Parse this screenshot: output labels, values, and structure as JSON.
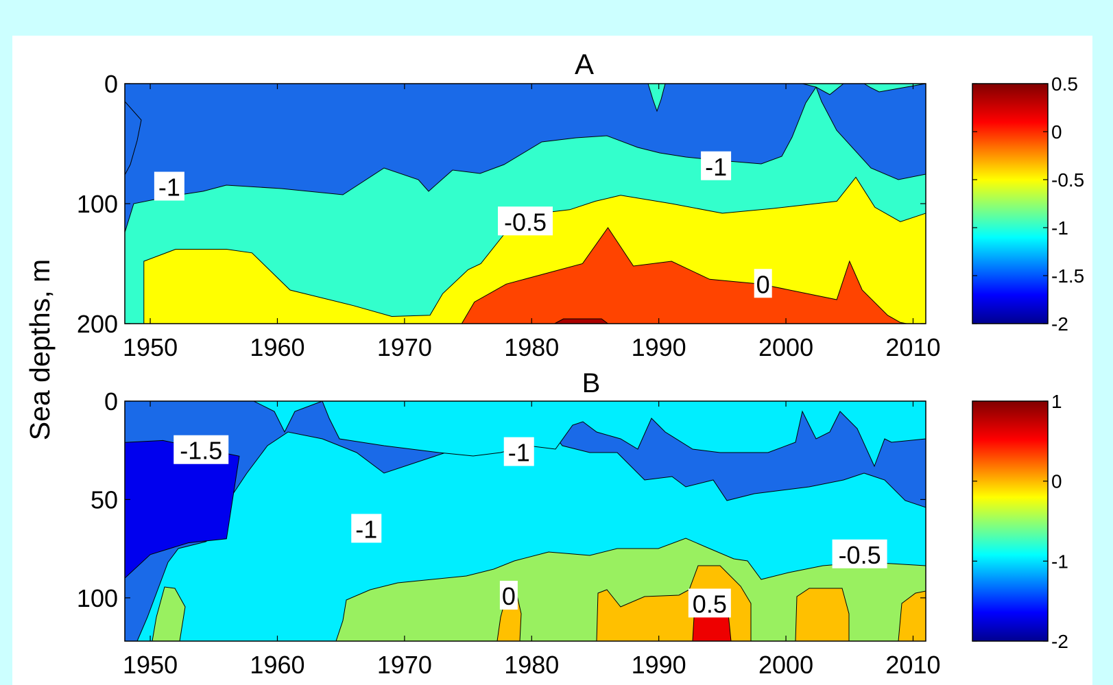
{
  "figure": {
    "ylabel": "Sea depths, m",
    "background_color": "#ccffff",
    "panel_color": "#ffffff"
  },
  "chart_data": [
    {
      "type": "heatmap",
      "panel_title": "A",
      "x_ticks": [
        "1950",
        "1960",
        "1970",
        "1980",
        "1990",
        "2000",
        "2010"
      ],
      "y_ticks": [
        "0",
        "100",
        "200"
      ],
      "xlim": [
        1948,
        2011
      ],
      "ylim": [
        0,
        200
      ],
      "y_reversed": true,
      "colorbar": {
        "min": -2,
        "max": 0.5,
        "ticks": [
          "0.5",
          "0",
          "-0.5",
          "-1",
          "-1.5",
          "-2"
        ]
      },
      "contour_labels": [
        {
          "text": "-1",
          "x": 1951.5,
          "y": 86
        },
        {
          "text": "-1",
          "x": 1994.5,
          "y": 69
        },
        {
          "text": "-0.5",
          "x": 1979.5,
          "y": 115
        },
        {
          "text": "0",
          "x": 1998.2,
          "y": 167
        }
      ],
      "bands": [
        {
          "value": -0.25,
          "color": "#ffff00",
          "points": [
            [
              1948,
              200
            ],
            [
              1949.5,
              200
            ],
            [
              1949.5,
              148
            ],
            [
              1952,
              138
            ],
            [
              1956,
              138
            ],
            [
              1958,
              141
            ],
            [
              1961,
              172
            ],
            [
              1966,
              185
            ],
            [
              1969,
              194
            ],
            [
              1972,
              193
            ],
            [
              1973,
              175
            ],
            [
              1975,
              155
            ],
            [
              1976,
              150
            ],
            [
              1977.5,
              130
            ],
            [
              1979,
              110
            ],
            [
              1983,
              105
            ],
            [
              1985,
              98
            ],
            [
              1987,
              93
            ],
            [
              1991,
              100
            ],
            [
              1995,
              108
            ],
            [
              1999,
              104
            ],
            [
              2004,
              98
            ],
            [
              2005.5,
              78
            ],
            [
              2007,
              103
            ],
            [
              2009,
              115
            ],
            [
              2011,
              108
            ],
            [
              2011,
              200
            ]
          ]
        },
        {
          "value": 0.25,
          "color": "#ff4400",
          "points": [
            [
              1974.5,
              200
            ],
            [
              1975.5,
              182
            ],
            [
              1978,
              167
            ],
            [
              1984,
              150
            ],
            [
              1986,
              120
            ],
            [
              1988,
              152
            ],
            [
              1991,
              148
            ],
            [
              1994,
              163
            ],
            [
              1998,
              167
            ],
            [
              2004,
              180
            ],
            [
              2005,
              148
            ],
            [
              2006,
              172
            ],
            [
              2008,
              193
            ],
            [
              2009,
              199
            ],
            [
              2009.5,
              200
            ]
          ]
        },
        {
          "value": 0.5,
          "color": "#aa0000",
          "points": [
            [
              1981.8,
              200
            ],
            [
              1982.5,
              196
            ],
            [
              1985.5,
              196
            ],
            [
              1986,
              200
            ]
          ]
        }
      ]
    },
    {
      "type": "heatmap",
      "panel_title": "B",
      "x_ticks": [
        "1950",
        "1960",
        "1970",
        "1980",
        "1990",
        "2000",
        "2010"
      ],
      "y_ticks": [
        "0",
        "50",
        "100"
      ],
      "xlim": [
        1948,
        2011
      ],
      "ylim": [
        0,
        122
      ],
      "y_reversed": true,
      "colorbar": {
        "min": -2,
        "max": 1,
        "ticks": [
          "1",
          "0",
          "-1",
          "-2"
        ]
      },
      "contour_labels": [
        {
          "text": "-1.5",
          "x": 1954,
          "y": 25
        },
        {
          "text": "-1",
          "x": 1979,
          "y": 26
        },
        {
          "text": "-1",
          "x": 1967,
          "y": 65
        },
        {
          "text": "-0.5",
          "x": 2005.8,
          "y": 78
        },
        {
          "text": "0",
          "x": 1978.2,
          "y": 99
        },
        {
          "text": "0.5",
          "x": 1994,
          "y": 103
        }
      ],
      "bands": [
        {
          "value": -1.75,
          "color": "#0000ee",
          "points": [
            [
              1948,
              0
            ],
            [
              1948,
              90
            ],
            [
              1950,
              78
            ],
            [
              1953,
              72
            ],
            [
              1956,
              70
            ],
            [
              1957,
              28
            ],
            [
              1951,
              20
            ],
            [
              1948,
              21
            ]
          ]
        }
      ]
    }
  ]
}
